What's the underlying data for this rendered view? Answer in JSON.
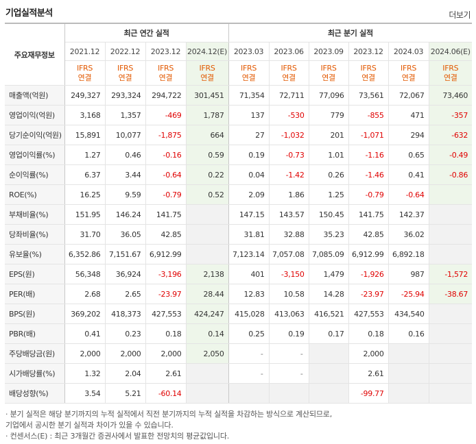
{
  "header": {
    "title": "기업실적분석",
    "more_label": "더보기"
  },
  "table": {
    "corner_label": "주요재무정보",
    "group_annual": "최근 연간 실적",
    "group_quarter": "최근 분기 실적",
    "periods": [
      "2021.12",
      "2022.12",
      "2023.12",
      "2024.12(E)",
      "2023.03",
      "2023.06",
      "2023.09",
      "2023.12",
      "2024.03",
      "2024.06(E)"
    ],
    "basis": [
      {
        "line1": "IFRS",
        "line2": "연결"
      },
      {
        "line1": "IFRS",
        "line2": "연결"
      },
      {
        "line1": "IFRS",
        "line2": "연결"
      },
      {
        "line1": "IFRS",
        "line2": "연결"
      },
      {
        "line1": "IFRS",
        "line2": "연결"
      },
      {
        "line1": "IFRS",
        "line2": "연결"
      },
      {
        "line1": "IFRS",
        "line2": "연결"
      },
      {
        "line1": "IFRS",
        "line2": "연결"
      },
      {
        "line1": "IFRS",
        "line2": "연결"
      },
      {
        "line1": "IFRS",
        "line2": "연결"
      }
    ],
    "rows": [
      {
        "label": "매출액(억원)",
        "values": [
          "249,327",
          "293,324",
          "294,722",
          "301,451",
          "71,354",
          "72,711",
          "77,096",
          "73,561",
          "72,067",
          "73,460"
        ]
      },
      {
        "label": "영업이익(억원)",
        "values": [
          "3,168",
          "1,357",
          "-469",
          "1,787",
          "137",
          "-530",
          "779",
          "-855",
          "471",
          "-357"
        ]
      },
      {
        "label": "당기순이익(억원)",
        "values": [
          "15,891",
          "10,077",
          "-1,875",
          "664",
          "27",
          "-1,032",
          "201",
          "-1,071",
          "294",
          "-632"
        ]
      },
      {
        "label": "영업이익률(%)",
        "values": [
          "1.27",
          "0.46",
          "-0.16",
          "0.59",
          "0.19",
          "-0.73",
          "1.01",
          "-1.16",
          "0.65",
          "-0.49"
        ]
      },
      {
        "label": "순이익률(%)",
        "values": [
          "6.37",
          "3.44",
          "-0.64",
          "0.22",
          "0.04",
          "-1.42",
          "0.26",
          "-1.46",
          "0.41",
          "-0.86"
        ]
      },
      {
        "label": "ROE(%)",
        "values": [
          "16.25",
          "9.59",
          "-0.79",
          "0.52",
          "2.09",
          "1.86",
          "1.25",
          "-0.79",
          "-0.64",
          ""
        ]
      },
      {
        "label": "부채비율(%)",
        "values": [
          "151.95",
          "146.24",
          "141.75",
          "",
          "147.15",
          "143.57",
          "150.45",
          "141.75",
          "142.37",
          ""
        ]
      },
      {
        "label": "당좌비율(%)",
        "values": [
          "31.70",
          "36.05",
          "42.85",
          "",
          "31.81",
          "32.88",
          "35.23",
          "42.85",
          "36.02",
          ""
        ]
      },
      {
        "label": "유보율(%)",
        "values": [
          "6,352.86",
          "7,151.67",
          "6,912.99",
          "",
          "7,123.14",
          "7,057.08",
          "7,085.09",
          "6,912.99",
          "6,892.18",
          ""
        ]
      },
      {
        "label": "EPS(원)",
        "values": [
          "56,348",
          "36,924",
          "-3,196",
          "2,138",
          "401",
          "-3,150",
          "1,479",
          "-1,926",
          "987",
          "-1,572"
        ]
      },
      {
        "label": "PER(배)",
        "values": [
          "2.68",
          "2.65",
          "-23.97",
          "28.44",
          "12.83",
          "10.58",
          "14.28",
          "-23.97",
          "-25.94",
          "-38.67"
        ]
      },
      {
        "label": "BPS(원)",
        "values": [
          "369,202",
          "418,373",
          "427,553",
          "424,247",
          "415,028",
          "413,063",
          "416,521",
          "427,553",
          "434,540",
          ""
        ]
      },
      {
        "label": "PBR(배)",
        "values": [
          "0.41",
          "0.23",
          "0.18",
          "0.14",
          "0.25",
          "0.19",
          "0.17",
          "0.18",
          "0.16",
          ""
        ]
      },
      {
        "label": "주당배당금(원)",
        "values": [
          "2,000",
          "2,000",
          "2,000",
          "2,050",
          "-",
          "-",
          "",
          "2,000",
          "",
          ""
        ]
      },
      {
        "label": "시가배당률(%)",
        "values": [
          "1.32",
          "2.04",
          "2.61",
          "",
          "-",
          "-",
          "",
          "2.61",
          "",
          ""
        ]
      },
      {
        "label": "배당성향(%)",
        "values": [
          "3.54",
          "5.21",
          "-60.14",
          "",
          "",
          "",
          "",
          "-99.77",
          "",
          ""
        ]
      }
    ]
  },
  "notes": [
    "· 분기 실적은 해당 분기까지의 누적 실적에서 직전 분기까지의 누적 실적을 차감하는 방식으로 계산되므로,",
    "  기업에서 공시한 분기 실적과 차이가 있을 수 있습니다.",
    "· 컨센서스(E) : 최근 3개월간 증권사에서 발표한 전망치의 평균값입니다."
  ],
  "colors": {
    "negative": "#e00000",
    "basis": "#e25800",
    "estimate_bg": "#eef6ea"
  }
}
